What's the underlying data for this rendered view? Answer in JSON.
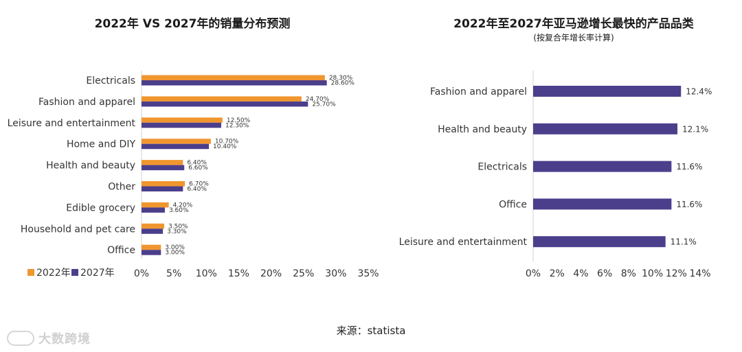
{
  "chart_data": [
    {
      "type": "bar",
      "orientation": "horizontal",
      "title": "2022年 VS 2027年的销量分布预测",
      "categories": [
        "Electricals",
        "Fashion and apparel",
        "Leisure and entertainment",
        "Home and DIY",
        "Health and beauty",
        "Other",
        "Edible grocery",
        "Household and pet care",
        "Office"
      ],
      "series": [
        {
          "name": "2022年",
          "color": "#f0962f",
          "values": [
            28.3,
            24.7,
            12.5,
            10.7,
            6.4,
            6.7,
            4.2,
            3.5,
            3.0
          ],
          "labels": [
            "28.30%",
            "24.70%",
            "12.50%",
            "10.70%",
            "6.40%",
            "6.70%",
            "4.20%",
            "3.50%",
            "3.00%"
          ]
        },
        {
          "name": "2027年",
          "color": "#4b3f8c",
          "values": [
            28.6,
            25.7,
            12.3,
            10.4,
            6.6,
            6.4,
            3.6,
            3.3,
            3.0
          ],
          "labels": [
            "28.60%",
            "25.70%",
            "12.30%",
            "10.40%",
            "6.60%",
            "6.40%",
            "3.60%",
            "3.30%",
            "3.00%"
          ]
        }
      ],
      "xlim": [
        0,
        35
      ],
      "xticks": [
        "0%",
        "5%",
        "10%",
        "15%",
        "20%",
        "25%",
        "30%",
        "35%"
      ],
      "legend": "bottom-left",
      "grid": false
    },
    {
      "type": "bar",
      "orientation": "horizontal",
      "title": "2022年至2027年亚马逊增长最快的产品品类",
      "subtitle": "(按复合年增长率计算)",
      "categories": [
        "Fashion and apparel",
        "Health and beauty",
        "Electricals",
        "Office",
        "Leisure and entertainment"
      ],
      "series": [
        {
          "color": "#4b3f8c",
          "values": [
            12.4,
            12.1,
            11.6,
            11.6,
            11.1
          ],
          "labels": [
            "12.4%",
            "12.1%",
            "11.6%",
            "11.6%",
            "11.1%"
          ]
        }
      ],
      "xlim": [
        0,
        14
      ],
      "xticks": [
        "0%",
        "2%",
        "4%",
        "6%",
        "8%",
        "10%",
        "12%",
        "14%"
      ],
      "grid": false
    }
  ],
  "footer": {
    "source": "来源：statista"
  },
  "watermark": {
    "text": "大数跨境"
  }
}
